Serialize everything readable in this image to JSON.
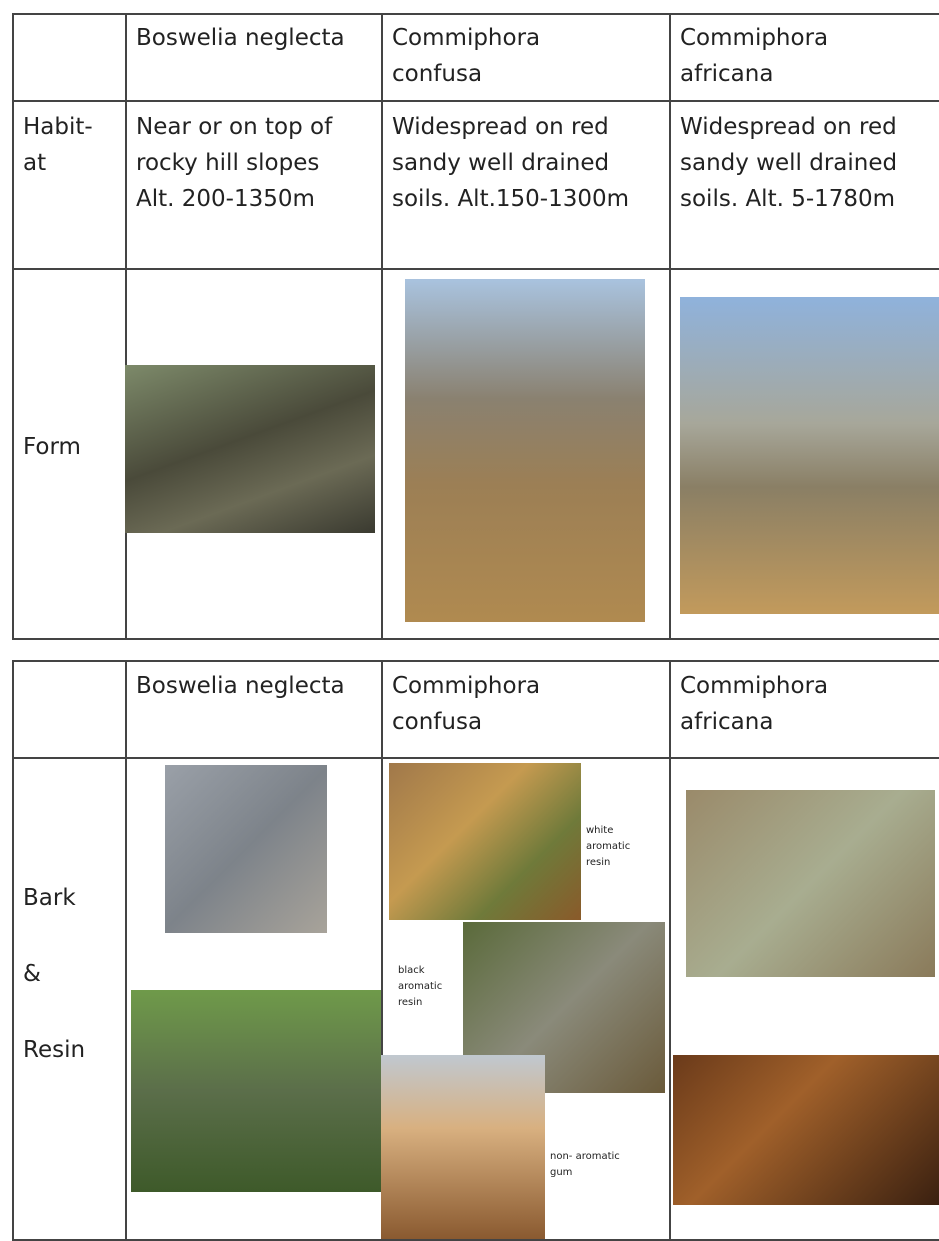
{
  "tables": [
    {
      "header": [
        [
          "Boswelia neglecta"
        ],
        [
          "Commiphora",
          "confusa"
        ],
        [
          "Commiphora",
          "africana"
        ]
      ],
      "rows": [
        {
          "label": [
            "Habit-",
            "at"
          ],
          "cells": [
            [
              "Near or on top of",
              "rocky hill slopes",
              "Alt. 200-1350m"
            ],
            [
              "Widespread on red",
              "sandy well drained",
              "soils. Alt.150-1300m"
            ],
            [
              "Widespread on red",
              "sandy well drained",
              "soils. Alt. 5-1780m"
            ]
          ]
        },
        {
          "label": [
            "Form"
          ]
        }
      ]
    },
    {
      "header": [
        [
          "Boswelia neglecta"
        ],
        [
          "Commiphora",
          "confusa"
        ],
        [
          "Commiphora",
          "africana"
        ]
      ],
      "rows": [
        {
          "label": [
            "Bark",
            "&",
            "Resin"
          ],
          "annotations": [
            [
              "white",
              "aromatic",
              "resin"
            ],
            [
              "black",
              "aromatic",
              "resin"
            ],
            [
              "non-  aromatic",
              "gum"
            ]
          ]
        }
      ]
    }
  ]
}
